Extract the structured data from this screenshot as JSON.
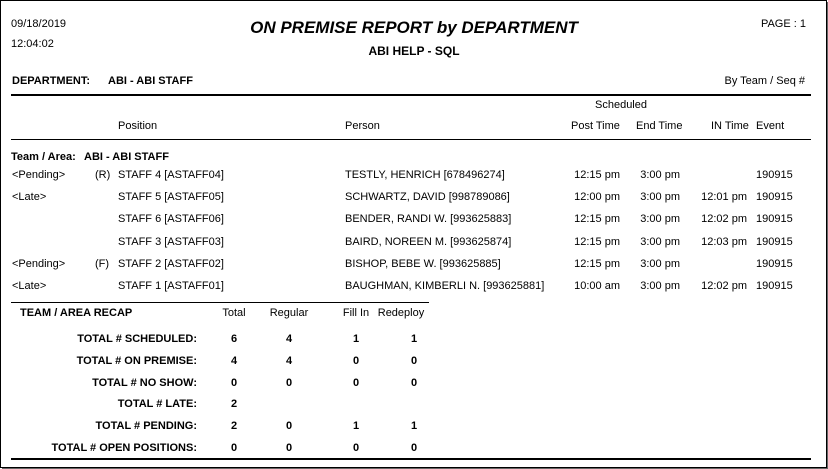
{
  "header": {
    "date": "09/18/2019",
    "time": "12:04:02",
    "title": "ON PREMISE REPORT by DEPARTMENT",
    "subtitle": "ABI HELP - SQL",
    "page_label": "PAGE : 1"
  },
  "department": {
    "label": "DEPARTMENT:",
    "value": "ABI - ABI STAFF",
    "sort_label": "By Team / Seq #"
  },
  "columns": {
    "scheduled": "Scheduled",
    "position": "Position",
    "person": "Person",
    "post_time": "Post Time",
    "end_time": "End Time",
    "in_time": "IN Time",
    "event": "Event"
  },
  "team": {
    "label": "Team / Area:",
    "value": "ABI - ABI STAFF"
  },
  "rows": [
    {
      "status": "<Pending>",
      "flag": "(R)",
      "position": "STAFF 4 [ASTAFF04]",
      "person": "TESTLY, HENRICH [678496274]",
      "post_time": "12:15 pm",
      "end_time": "3:00 pm",
      "in_time": "",
      "event": "190915"
    },
    {
      "status": "<Late>",
      "flag": "",
      "position": "STAFF 5 [ASTAFF05]",
      "person": "SCHWARTZ, DAVID [998789086]",
      "post_time": "12:00 pm",
      "end_time": "3:00 pm",
      "in_time": "12:01 pm",
      "event": "190915"
    },
    {
      "status": "",
      "flag": "",
      "position": "STAFF 6 [ASTAFF06]",
      "person": "BENDER, RANDI W. [993625883]",
      "post_time": "12:15 pm",
      "end_time": "3:00 pm",
      "in_time": "12:02 pm",
      "event": "190915"
    },
    {
      "status": "",
      "flag": "",
      "position": "STAFF 3 [ASTAFF03]",
      "person": "BAIRD, NOREEN M. [993625874]",
      "post_time": "12:15 pm",
      "end_time": "3:00 pm",
      "in_time": "12:03 pm",
      "event": "190915"
    },
    {
      "status": "<Pending>",
      "flag": "(F)",
      "position": "STAFF 2 [ASTAFF02]",
      "person": "BISHOP, BEBE W. [993625885]",
      "post_time": "12:15 pm",
      "end_time": "3:00 pm",
      "in_time": "",
      "event": "190915"
    },
    {
      "status": "<Late>",
      "flag": "",
      "position": "STAFF 1 [ASTAFF01]",
      "person": "BAUGHMAN, KIMBERLI N. [993625881]",
      "post_time": "10:00 am",
      "end_time": "3:00 pm",
      "in_time": "12:02 pm",
      "event": "190915"
    }
  ],
  "recap": {
    "title": "TEAM / AREA RECAP",
    "headers": {
      "total": "Total",
      "regular": "Regular",
      "fill_in": "Fill In",
      "redeploy": "Redeploy"
    },
    "rows": [
      {
        "label": "TOTAL # SCHEDULED:",
        "total": "6",
        "regular": "4",
        "fill_in": "1",
        "redeploy": "1"
      },
      {
        "label": "TOTAL # ON PREMISE:",
        "total": "4",
        "regular": "4",
        "fill_in": "0",
        "redeploy": "0"
      },
      {
        "label": "TOTAL # NO SHOW:",
        "total": "0",
        "regular": "0",
        "fill_in": "0",
        "redeploy": "0"
      },
      {
        "label": "TOTAL # LATE:",
        "total": "2",
        "regular": "",
        "fill_in": "",
        "redeploy": ""
      },
      {
        "label": "TOTAL # PENDING:",
        "total": "2",
        "regular": "0",
        "fill_in": "1",
        "redeploy": "1"
      },
      {
        "label": "TOTAL # OPEN POSITIONS:",
        "total": "0",
        "regular": "0",
        "fill_in": "0",
        "redeploy": "0"
      }
    ]
  }
}
